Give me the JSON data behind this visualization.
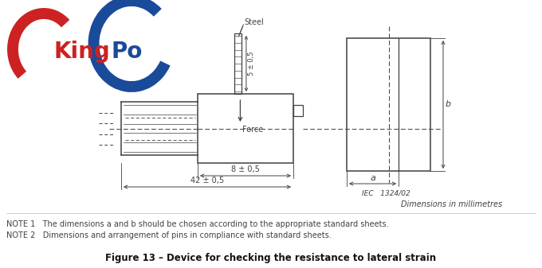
{
  "fig_width": 6.8,
  "fig_height": 3.37,
  "dpi": 100,
  "bg_color": "#ffffff",
  "kingpo_red": "#cc2222",
  "kingpo_blue": "#1a4a9a",
  "line_color": "#404040",
  "note1": "NOTE 1   The dimensions a and b should be chosen according to the appropriate standard sheets.",
  "note2": "NOTE 2   Dimensions and arrangement of pins in compliance with standard sheets.",
  "figure_caption": "Figure 13 – Device for checking the resistance to lateral strain",
  "iec_ref": "IEC   1324/02",
  "dim_note": "Dimensions in millimetres",
  "label_steel": "Steel",
  "label_force": "Force",
  "label_5": "5 ± 0,5",
  "label_8": "8 ± 0,5",
  "label_42": "42 ± 0,5",
  "label_a": "a",
  "label_b": "b"
}
